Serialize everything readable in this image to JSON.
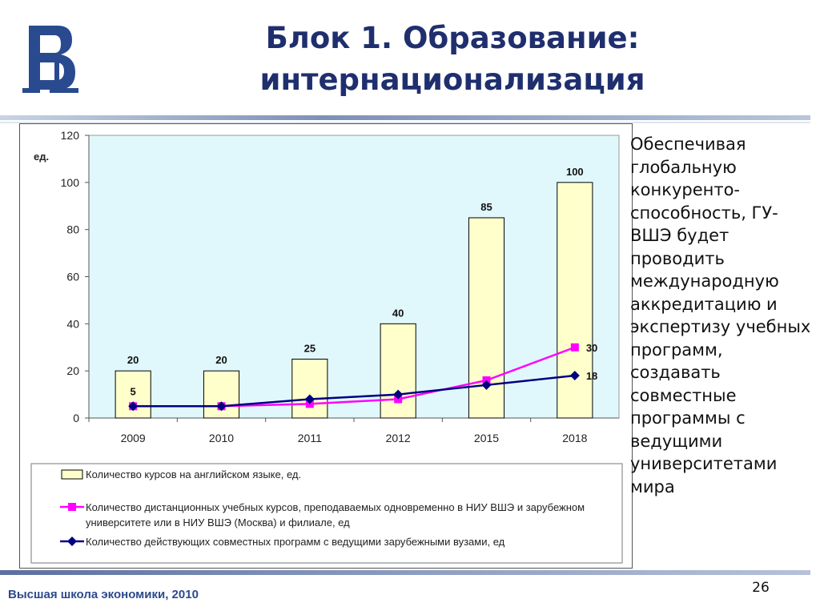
{
  "slide": {
    "title": "Блок 1. Образование: интернационализация",
    "side_text": "Обеспечивая глобальную конкуренто-способность, ГУ-ВШЭ будет проводить международную аккредитацию и экспертизу учебных программ, создавать совместные программы с ведущими университетами мира",
    "page_number": "26",
    "footer": "Высшая школа экономики, 2010"
  },
  "chart_data": {
    "type": "bar",
    "title": "",
    "ylabel": "ед.",
    "xlabel": "",
    "ylim": [
      0,
      120
    ],
    "yticks": [
      0,
      20,
      40,
      60,
      80,
      100,
      120
    ],
    "categories": [
      "2009",
      "2010",
      "2011",
      "2012",
      "2015",
      "2018"
    ],
    "series": [
      {
        "name": "Количество курсов на английском языке, ед.",
        "kind": "bar",
        "values": [
          20,
          20,
          25,
          40,
          85,
          100
        ],
        "color": "#ffffcc",
        "labels": [
          "20",
          "20",
          "25",
          "40",
          "85",
          "100"
        ]
      },
      {
        "name": "Количество дистанционных учебных курсов, преподаваемых одновременно в НИУ ВШЭ и зарубежном университете или в НИУ ВШЭ (Москва) и филиале, ед",
        "kind": "line",
        "marker": "square",
        "values": [
          5,
          5,
          6,
          8,
          16,
          30
        ],
        "color": "#ff00ff",
        "labels": [
          "",
          "",
          "",
          "",
          "",
          "30"
        ]
      },
      {
        "name": "Количество действующих совместных программ с ведущими зарубежными вузами, ед",
        "kind": "line",
        "marker": "diamond",
        "values": [
          5,
          5,
          8,
          10,
          14,
          18
        ],
        "color": "#000080",
        "labels": [
          "5",
          "",
          "",
          "",
          "",
          "18"
        ]
      }
    ],
    "legend_position": "bottom",
    "plot_background": "#e0f8fc",
    "grid": false
  }
}
